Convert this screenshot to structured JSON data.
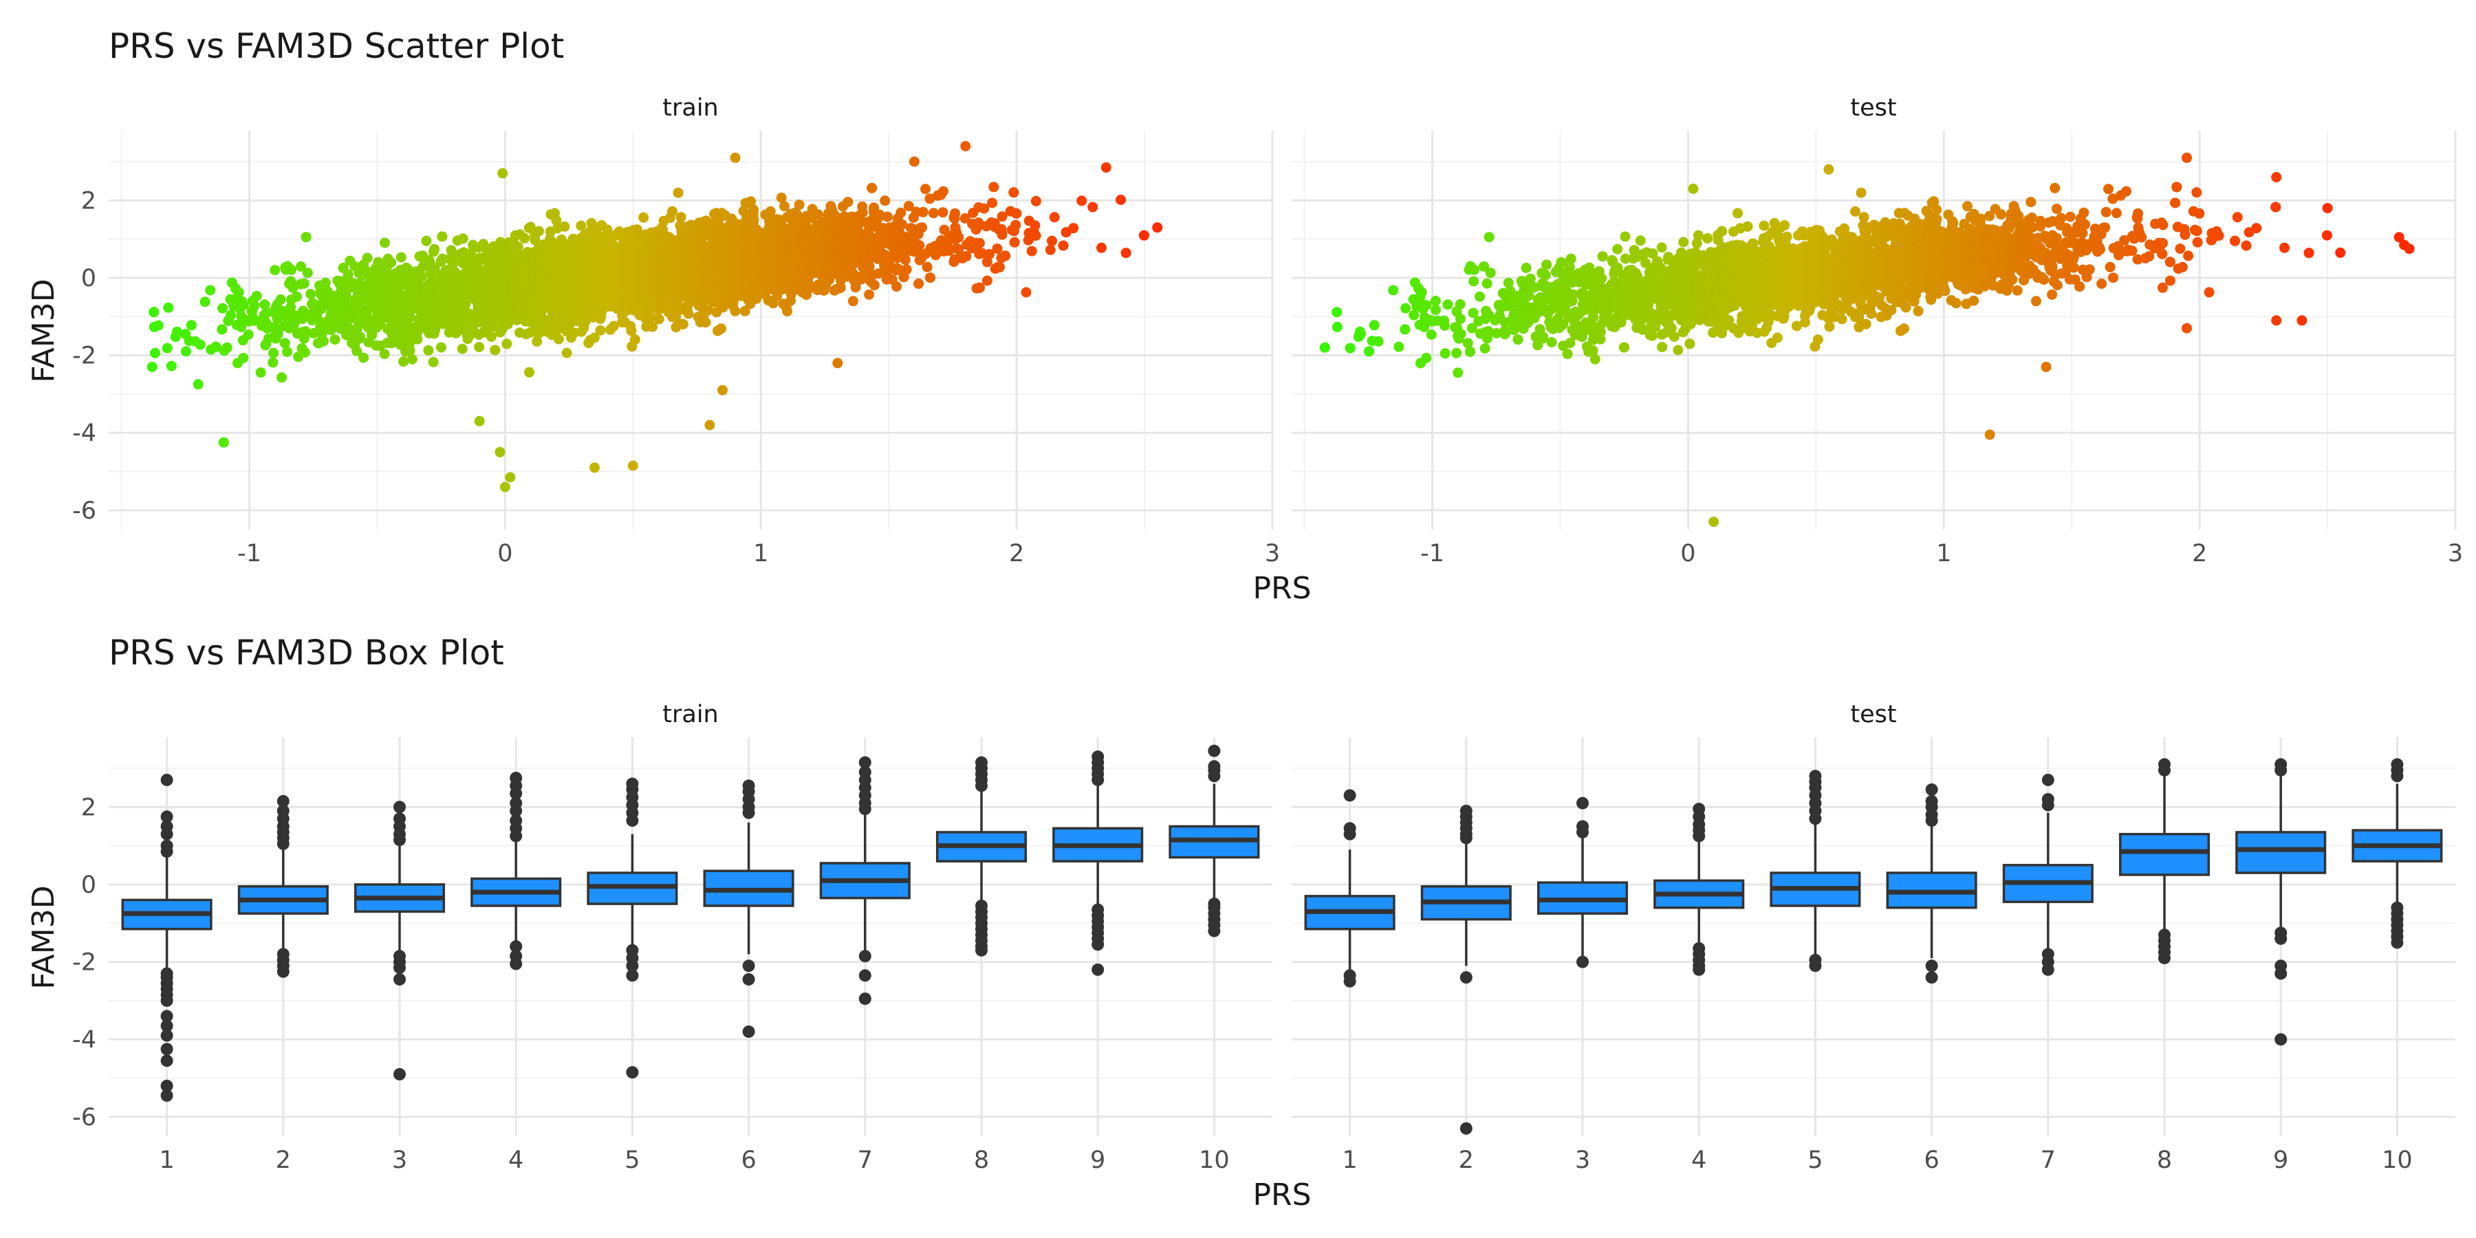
{
  "chart_data": [
    {
      "type": "scatter",
      "title": "PRS vs FAM3D Scatter Plot",
      "xlabel": "PRS",
      "ylabel": "FAM3D",
      "facets": [
        "train",
        "test"
      ],
      "xlim": [
        -1.55,
        3.0
      ],
      "ylim": [
        -6.5,
        3.8
      ],
      "xticks": [
        "-1",
        "0",
        "1",
        "2",
        "3"
      ],
      "yticks": [
        "2",
        "0",
        "-2",
        "-4",
        "-6"
      ],
      "xtick_values": [
        -1,
        0,
        1,
        2,
        3
      ],
      "ytick_values": [
        2,
        0,
        -2,
        -4,
        -6
      ],
      "color_scale": {
        "low": "#22ff00",
        "mid": "#c8b400",
        "high": "#ff2a00"
      },
      "grid": true,
      "legend": "none",
      "cloud_trend": {
        "intercept": -0.3,
        "slope": 0.78,
        "spread": 0.55
      },
      "x_range": [
        -1.4,
        2.55
      ],
      "outliers": {
        "train": [
          [
            -1.1,
            -4.25
          ],
          [
            0.35,
            -4.9
          ],
          [
            0.5,
            -4.85
          ],
          [
            -0.1,
            -3.7
          ],
          [
            0.8,
            -3.8
          ],
          [
            0.85,
            -2.9
          ],
          [
            -0.02,
            -4.5
          ],
          [
            0.02,
            -5.15
          ],
          [
            0.0,
            -5.4
          ],
          [
            -0.01,
            2.7
          ],
          [
            1.8,
            3.4
          ],
          [
            2.35,
            2.85
          ],
          [
            1.3,
            -2.2
          ],
          [
            -1.38,
            -2.3
          ],
          [
            -1.2,
            -2.75
          ],
          [
            -1.25,
            -1.45
          ],
          [
            -1.15,
            -1.85
          ],
          [
            -0.9,
            0.2
          ],
          [
            2.55,
            1.3
          ],
          [
            1.6,
            3.0
          ],
          [
            0.9,
            3.1
          ]
        ],
        "test": [
          [
            -1.42,
            -1.8
          ],
          [
            -1.28,
            -1.45
          ],
          [
            2.78,
            1.05
          ],
          [
            2.8,
            0.85
          ],
          [
            2.82,
            0.75
          ],
          [
            2.55,
            0.65
          ],
          [
            1.18,
            -4.05
          ],
          [
            0.1,
            -6.3
          ],
          [
            1.95,
            3.1
          ],
          [
            2.5,
            1.8
          ],
          [
            2.4,
            -1.1
          ],
          [
            2.3,
            -1.1
          ],
          [
            1.95,
            -1.3
          ],
          [
            1.4,
            -2.3
          ],
          [
            0.02,
            2.3
          ],
          [
            -0.95,
            -1.95
          ],
          [
            -0.9,
            -2.45
          ],
          [
            0.55,
            2.8
          ],
          [
            2.3,
            2.6
          ]
        ]
      }
    },
    {
      "type": "box",
      "title": "PRS vs FAM3D Box Plot",
      "xlabel": "PRS",
      "ylabel": "FAM3D",
      "facets": [
        "train",
        "test"
      ],
      "categories": [
        "1",
        "2",
        "3",
        "4",
        "5",
        "6",
        "7",
        "8",
        "9",
        "10"
      ],
      "ylim": [
        -6.5,
        3.8
      ],
      "yticks": [
        "2",
        "0",
        "-2",
        "-4",
        "-6"
      ],
      "ytick_values": [
        2,
        0,
        -2,
        -4,
        -6
      ],
      "box_fill": "#1e90ff",
      "box_stroke": "#333333",
      "series": [
        {
          "facet": "train",
          "boxes": [
            {
              "q1": -1.15,
              "median": -0.75,
              "q3": -0.4,
              "lo": -2.2,
              "hi": 0.7,
              "outliers": [
                2.7,
                1.75,
                1.5,
                1.3,
                1.0,
                0.85,
                -2.3,
                -2.4,
                -2.55,
                -2.7,
                -2.85,
                -3.0,
                -3.4,
                -3.65,
                -3.9,
                -4.25,
                -4.55,
                -5.2,
                -5.45
              ]
            },
            {
              "q1": -0.75,
              "median": -0.4,
              "q3": -0.05,
              "lo": -1.7,
              "hi": 0.9,
              "outliers": [
                2.15,
                1.9,
                1.7,
                1.5,
                1.35,
                1.2,
                1.05,
                -1.8,
                -1.95,
                -2.1,
                -2.25
              ]
            },
            {
              "q1": -0.7,
              "median": -0.35,
              "q3": 0.0,
              "lo": -1.7,
              "hi": 1.0,
              "outliers": [
                2.0,
                1.7,
                1.5,
                1.3,
                1.15,
                -1.85,
                -2.0,
                -2.15,
                -2.45,
                -4.9
              ]
            },
            {
              "q1": -0.55,
              "median": -0.2,
              "q3": 0.15,
              "lo": -1.5,
              "hi": 1.1,
              "outliers": [
                2.75,
                2.55,
                2.35,
                2.1,
                1.9,
                1.65,
                1.45,
                1.25,
                -1.6,
                -1.85,
                -2.05
              ]
            },
            {
              "q1": -0.5,
              "median": -0.05,
              "q3": 0.3,
              "lo": -1.55,
              "hi": 1.3,
              "outliers": [
                2.6,
                2.45,
                2.25,
                2.05,
                1.85,
                1.65,
                -1.7,
                -1.9,
                -2.1,
                -2.35,
                -4.85
              ]
            },
            {
              "q1": -0.55,
              "median": -0.15,
              "q3": 0.35,
              "lo": -1.8,
              "hi": 1.6,
              "outliers": [
                2.55,
                2.4,
                2.2,
                2.0,
                1.85,
                -2.1,
                -2.45,
                -3.8
              ]
            },
            {
              "q1": -0.35,
              "median": 0.1,
              "q3": 0.55,
              "lo": -1.7,
              "hi": 1.8,
              "outliers": [
                3.15,
                2.9,
                2.7,
                2.5,
                2.3,
                2.1,
                1.95,
                -1.85,
                -2.35,
                -2.95
              ]
            },
            {
              "q1": 0.6,
              "median": 1.0,
              "q3": 1.35,
              "lo": -0.4,
              "hi": 2.4,
              "outliers": [
                3.15,
                3.0,
                2.85,
                2.7,
                2.55,
                -0.55,
                -0.7,
                -0.85,
                -1.0,
                -1.15,
                -1.3,
                -1.45,
                -1.6,
                -1.7
              ]
            },
            {
              "q1": 0.6,
              "median": 1.0,
              "q3": 1.45,
              "lo": -0.5,
              "hi": 2.6,
              "outliers": [
                3.3,
                3.15,
                3.0,
                2.85,
                2.7,
                -0.65,
                -0.8,
                -0.95,
                -1.1,
                -1.25,
                -1.4,
                -1.55,
                -2.2
              ]
            },
            {
              "q1": 0.7,
              "median": 1.15,
              "q3": 1.5,
              "lo": -0.4,
              "hi": 2.6,
              "outliers": [
                3.45,
                3.05,
                2.95,
                2.8,
                -0.5,
                -0.6,
                -0.75,
                -0.9,
                -1.05,
                -1.2
              ]
            }
          ]
        },
        {
          "facet": "test",
          "boxes": [
            {
              "q1": -1.15,
              "median": -0.7,
              "q3": -0.3,
              "lo": -2.2,
              "hi": 0.9,
              "outliers": [
                2.3,
                1.45,
                1.3,
                -2.35,
                -2.5
              ]
            },
            {
              "q1": -0.9,
              "median": -0.45,
              "q3": -0.05,
              "lo": -2.1,
              "hi": 1.1,
              "outliers": [
                1.9,
                1.75,
                1.6,
                1.45,
                1.3,
                1.2,
                -2.4,
                -6.3
              ]
            },
            {
              "q1": -0.75,
              "median": -0.4,
              "q3": 0.05,
              "lo": -1.9,
              "hi": 1.2,
              "outliers": [
                2.1,
                1.5,
                1.35,
                -2.0
              ]
            },
            {
              "q1": -0.6,
              "median": -0.25,
              "q3": 0.1,
              "lo": -1.55,
              "hi": 1.1,
              "outliers": [
                1.95,
                1.75,
                1.55,
                1.4,
                1.25,
                -1.65,
                -1.8,
                -1.95,
                -2.1,
                -2.2
              ]
            },
            {
              "q1": -0.55,
              "median": -0.1,
              "q3": 0.3,
              "lo": -1.8,
              "hi": 1.55,
              "outliers": [
                2.8,
                2.65,
                2.5,
                2.3,
                2.1,
                1.9,
                1.7,
                -1.95,
                -2.1
              ]
            },
            {
              "q1": -0.6,
              "median": -0.2,
              "q3": 0.3,
              "lo": -1.9,
              "hi": 1.5,
              "outliers": [
                2.45,
                2.15,
                2.0,
                1.8,
                1.65,
                -2.1,
                -2.4
              ]
            },
            {
              "q1": -0.45,
              "median": 0.05,
              "q3": 0.5,
              "lo": -1.7,
              "hi": 1.85,
              "outliers": [
                2.7,
                2.2,
                2.05,
                -1.8,
                -2.0,
                -2.2
              ]
            },
            {
              "q1": 0.25,
              "median": 0.85,
              "q3": 1.3,
              "lo": -1.2,
              "hi": 2.85,
              "outliers": [
                3.1,
                2.95,
                -1.3,
                -1.45,
                -1.6,
                -1.75,
                -1.9
              ]
            },
            {
              "q1": 0.3,
              "median": 0.9,
              "q3": 1.35,
              "lo": -1.15,
              "hi": 2.85,
              "outliers": [
                3.1,
                2.95,
                -1.25,
                -1.4,
                -2.1,
                -2.3,
                -4.0
              ]
            },
            {
              "q1": 0.6,
              "median": 1.0,
              "q3": 1.4,
              "lo": -0.5,
              "hi": 2.6,
              "outliers": [
                3.1,
                2.95,
                2.8,
                -0.6,
                -0.75,
                -0.9,
                -1.05,
                -1.2,
                -1.35,
                -1.5
              ]
            }
          ]
        }
      ]
    }
  ]
}
